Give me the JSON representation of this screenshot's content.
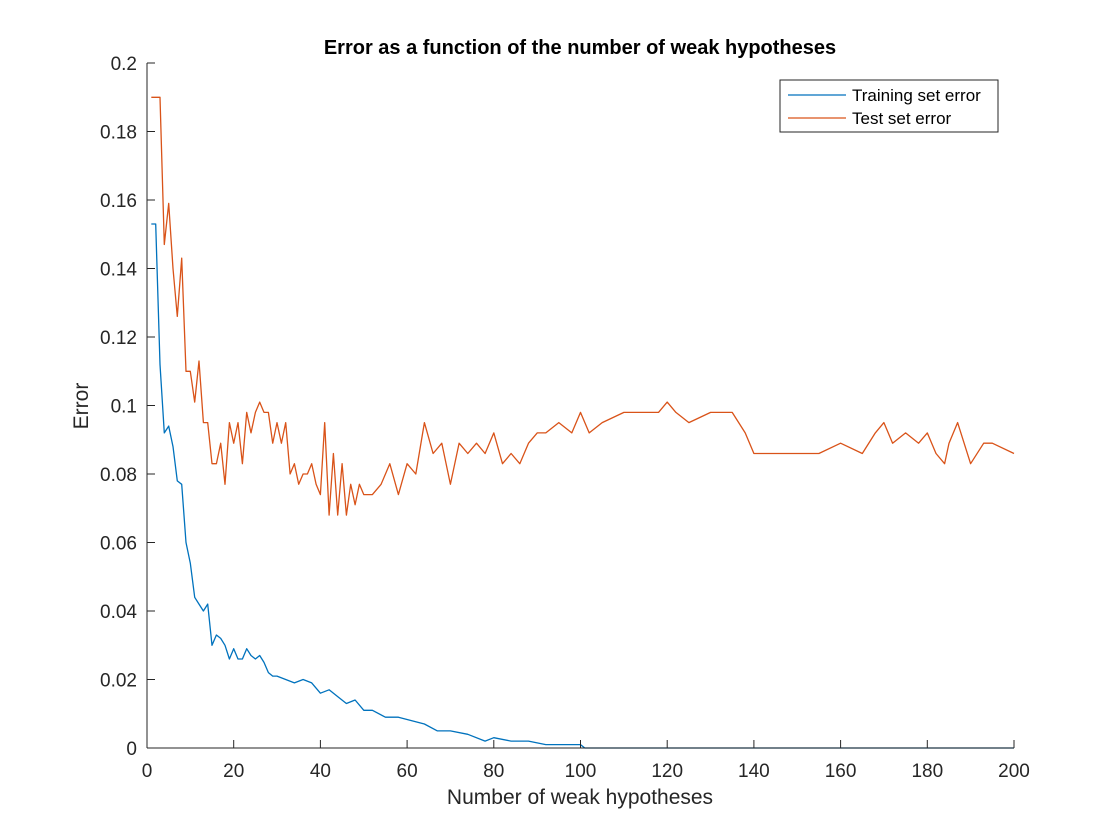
{
  "chart_data": {
    "type": "line",
    "title": "Error as a function of the number of weak hypotheses",
    "xlabel": "Number of weak hypotheses",
    "ylabel": "Error",
    "xlim": [
      0,
      200
    ],
    "ylim": [
      0,
      0.2
    ],
    "xticks": [
      0,
      20,
      40,
      60,
      80,
      100,
      120,
      140,
      160,
      180,
      200
    ],
    "yticks": [
      0,
      0.02,
      0.04,
      0.06,
      0.08,
      0.1,
      0.12,
      0.14,
      0.16,
      0.18,
      0.2
    ],
    "xtick_labels": [
      "0",
      "20",
      "40",
      "60",
      "80",
      "100",
      "120",
      "140",
      "160",
      "180",
      "200"
    ],
    "ytick_labels": [
      "0",
      "0.02",
      "0.04",
      "0.06",
      "0.08",
      "0.1",
      "0.12",
      "0.14",
      "0.16",
      "0.18",
      "0.2"
    ],
    "grid": false,
    "legend_position": "top-right",
    "series": [
      {
        "name": "Training set error",
        "color": "#0072BD",
        "x": [
          1,
          2,
          3,
          4,
          5,
          6,
          7,
          8,
          9,
          10,
          11,
          12,
          13,
          14,
          15,
          16,
          17,
          18,
          19,
          20,
          21,
          22,
          23,
          24,
          25,
          26,
          27,
          28,
          29,
          30,
          32,
          34,
          36,
          38,
          40,
          42,
          44,
          46,
          48,
          50,
          52,
          55,
          58,
          61,
          64,
          67,
          70,
          74,
          78,
          80,
          84,
          88,
          92,
          96,
          100,
          101,
          105,
          110,
          120,
          140,
          160,
          180,
          200
        ],
        "values": [
          0.153,
          0.153,
          0.112,
          0.092,
          0.094,
          0.088,
          0.078,
          0.077,
          0.06,
          0.054,
          0.044,
          0.042,
          0.04,
          0.042,
          0.03,
          0.033,
          0.032,
          0.03,
          0.026,
          0.029,
          0.026,
          0.026,
          0.029,
          0.027,
          0.026,
          0.027,
          0.025,
          0.022,
          0.021,
          0.021,
          0.02,
          0.019,
          0.02,
          0.019,
          0.016,
          0.017,
          0.015,
          0.013,
          0.014,
          0.011,
          0.011,
          0.009,
          0.009,
          0.008,
          0.007,
          0.005,
          0.005,
          0.004,
          0.002,
          0.003,
          0.002,
          0.002,
          0.001,
          0.001,
          0.001,
          0.0,
          0.0,
          0.0,
          0.0,
          0.0,
          0.0,
          0.0,
          0.0
        ]
      },
      {
        "name": "Test set error",
        "color": "#D95319",
        "x": [
          1,
          2,
          3,
          4,
          5,
          6,
          7,
          8,
          9,
          10,
          11,
          12,
          13,
          14,
          15,
          16,
          17,
          18,
          19,
          20,
          21,
          22,
          23,
          24,
          25,
          26,
          27,
          28,
          29,
          30,
          31,
          32,
          33,
          34,
          35,
          36,
          37,
          38,
          39,
          40,
          41,
          42,
          43,
          44,
          45,
          46,
          47,
          48,
          49,
          50,
          52,
          54,
          56,
          58,
          60,
          62,
          64,
          66,
          68,
          70,
          72,
          74,
          76,
          78,
          80,
          82,
          84,
          86,
          88,
          90,
          92,
          95,
          98,
          100,
          102,
          105,
          110,
          115,
          118,
          120,
          122,
          125,
          130,
          135,
          138,
          140,
          145,
          150,
          155,
          160,
          165,
          168,
          170,
          172,
          175,
          178,
          180,
          182,
          184,
          185,
          187,
          190,
          193,
          195,
          200
        ],
        "values": [
          0.19,
          0.19,
          0.19,
          0.147,
          0.159,
          0.14,
          0.126,
          0.143,
          0.11,
          0.11,
          0.101,
          0.113,
          0.095,
          0.095,
          0.083,
          0.083,
          0.089,
          0.077,
          0.095,
          0.089,
          0.095,
          0.083,
          0.098,
          0.092,
          0.098,
          0.101,
          0.098,
          0.098,
          0.089,
          0.095,
          0.089,
          0.095,
          0.08,
          0.083,
          0.077,
          0.08,
          0.08,
          0.083,
          0.077,
          0.074,
          0.095,
          0.068,
          0.086,
          0.068,
          0.083,
          0.068,
          0.077,
          0.071,
          0.077,
          0.074,
          0.074,
          0.077,
          0.083,
          0.074,
          0.083,
          0.08,
          0.095,
          0.086,
          0.089,
          0.077,
          0.089,
          0.086,
          0.089,
          0.086,
          0.092,
          0.083,
          0.086,
          0.083,
          0.089,
          0.092,
          0.092,
          0.095,
          0.092,
          0.098,
          0.092,
          0.095,
          0.098,
          0.098,
          0.098,
          0.101,
          0.098,
          0.095,
          0.098,
          0.098,
          0.092,
          0.086,
          0.086,
          0.086,
          0.086,
          0.089,
          0.086,
          0.092,
          0.095,
          0.089,
          0.092,
          0.089,
          0.092,
          0.086,
          0.083,
          0.089,
          0.095,
          0.083,
          0.089,
          0.089,
          0.086
        ]
      }
    ]
  }
}
